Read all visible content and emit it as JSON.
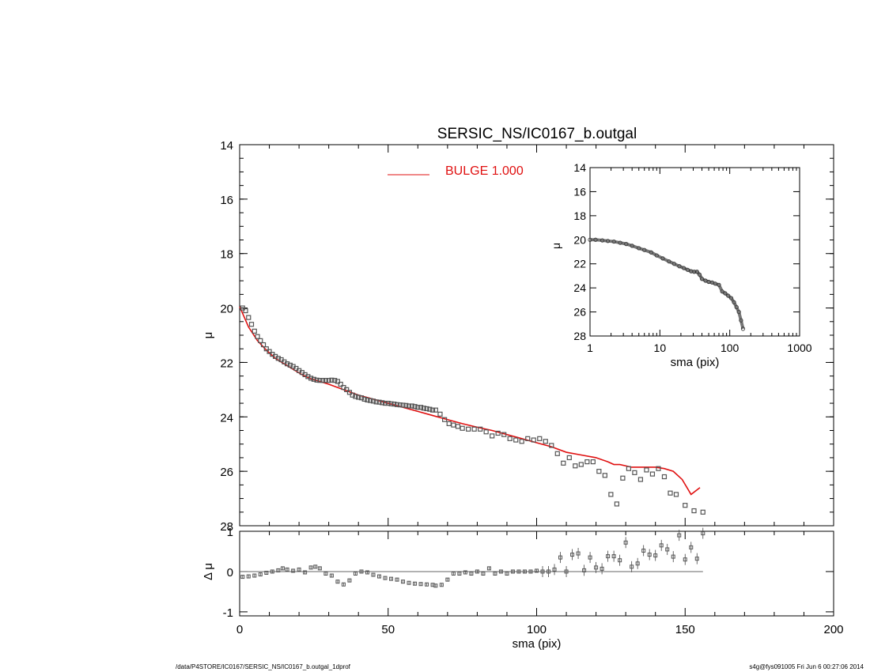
{
  "colors": {
    "model": "#e01010",
    "data": "#555555",
    "axis": "#000000",
    "zero_line": "#666666"
  },
  "footer": {
    "path": "/data/P4STORE/IC0167/SERSIC_NS/IC0167_b.outgal_1dprof",
    "stamp": "s4g@fys091005  Fri Jun  6 00:27:06 2014"
  },
  "chart_data": [
    {
      "panel": "main",
      "type": "scatter",
      "title": "SERSIC_NS/IC0167_b.outgal",
      "xlabel": "",
      "ylabel": "μ",
      "xlim": [
        0,
        200
      ],
      "ylim": [
        28,
        14
      ],
      "yticks": [
        14,
        16,
        18,
        20,
        22,
        24,
        26,
        28
      ],
      "legend": {
        "label": "BULGE  1.000",
        "placement": "top-center"
      },
      "series": [
        {
          "name": "",
          "kind": "points",
          "x": [
            1.0,
            2.0,
            3.0,
            4.0,
            5.0,
            6.0,
            7.0,
            8.0,
            9.0,
            10.0,
            11.0,
            12.0,
            13.0,
            14.0,
            15.0,
            16.0,
            17.0,
            18.0,
            19.0,
            20.0,
            21.0,
            22.0,
            23.0,
            24.0,
            25.0,
            26.0,
            27.0,
            28.0,
            29.0,
            30.0,
            31.0,
            32.0,
            33.0,
            34.0,
            35.0,
            36.0,
            37.0,
            38.0,
            39.0,
            40.0,
            41.0,
            42.0,
            43.0,
            44.0,
            45.0,
            46.0,
            47.0,
            48.0,
            49.0,
            50.0,
            51.0,
            52.0,
            53.0,
            54.0,
            55.0,
            56.0,
            57.0,
            58.0,
            59.0,
            60.0,
            61.0,
            62.0,
            63.0,
            64.0,
            65.0,
            66.0,
            67.5,
            69.0,
            70.5,
            72.0,
            73.5,
            75.0,
            77.0,
            79.0,
            81.0,
            83.0,
            85.0,
            87.0,
            89.0,
            91.0,
            93.0,
            95.0,
            97.0,
            99.0,
            101.0,
            103.0,
            105.0,
            107.0,
            109.0,
            111.0,
            113.0,
            115.0,
            117.0,
            119.0,
            121.0,
            123.0,
            125.0,
            127.0,
            129.0,
            131.0,
            133.0,
            135.0,
            137.0,
            139.0,
            141.0,
            143.0,
            145.0,
            147.0,
            150.0,
            153.0,
            156.0
          ],
          "y": [
            20.0,
            20.1,
            20.35,
            20.6,
            20.85,
            21.05,
            21.2,
            21.35,
            21.5,
            21.6,
            21.7,
            21.78,
            21.85,
            21.9,
            21.98,
            22.05,
            22.1,
            22.15,
            22.22,
            22.3,
            22.37,
            22.45,
            22.52,
            22.58,
            22.62,
            22.65,
            22.66,
            22.66,
            22.66,
            22.66,
            22.65,
            22.66,
            22.7,
            22.8,
            22.92,
            23.0,
            23.1,
            23.2,
            23.25,
            23.28,
            23.3,
            23.35,
            23.38,
            23.4,
            23.42,
            23.45,
            23.46,
            23.48,
            23.5,
            23.5,
            23.52,
            23.53,
            23.55,
            23.56,
            23.57,
            23.58,
            23.6,
            23.6,
            23.62,
            23.65,
            23.65,
            23.68,
            23.7,
            23.72,
            23.75,
            23.75,
            23.9,
            24.1,
            24.25,
            24.3,
            24.35,
            24.42,
            24.45,
            24.45,
            24.45,
            24.55,
            24.7,
            24.6,
            24.65,
            24.8,
            24.85,
            24.9,
            24.8,
            24.85,
            24.8,
            24.9,
            25.05,
            25.35,
            25.7,
            25.5,
            25.8,
            25.75,
            25.65,
            25.65,
            26.0,
            26.15,
            26.85,
            27.2,
            26.25,
            25.9,
            26.05,
            26.3,
            25.95,
            26.1,
            25.9,
            26.2,
            26.8,
            26.85,
            27.25,
            27.45,
            27.5
          ],
          "note_on": ""
        },
        {
          "name": "",
          "kind": "model-line",
          "x": [
            0.0,
            3.0,
            6.0,
            9.0,
            12.0,
            15.0,
            18.0,
            21.0,
            24.0,
            27.0,
            30.0,
            35.0,
            40.0,
            45.0,
            50.0,
            55.0,
            60.0,
            65.0,
            70.0,
            75.0,
            80.0,
            85.0,
            90.0,
            95.0,
            100.0,
            105.0,
            110.0,
            115.0,
            120.0,
            124.0,
            126.0,
            128.0,
            130.0,
            132.0,
            135.0,
            138.0,
            140.0,
            143.0,
            146.0,
            149.0,
            152.0,
            155.0
          ],
          "y": [
            19.95,
            20.7,
            21.2,
            21.55,
            21.85,
            22.05,
            22.25,
            22.45,
            22.6,
            22.7,
            22.8,
            23.0,
            23.2,
            23.35,
            23.5,
            23.65,
            23.8,
            23.95,
            24.1,
            24.25,
            24.38,
            24.5,
            24.65,
            24.8,
            24.95,
            25.1,
            25.3,
            25.4,
            25.5,
            25.65,
            25.75,
            25.75,
            25.8,
            25.85,
            25.85,
            25.85,
            25.85,
            25.9,
            26.0,
            26.3,
            26.85,
            26.6
          ]
        }
      ]
    },
    {
      "panel": "inset",
      "type": "scatter",
      "title": "",
      "xlabel": "sma (pix)",
      "ylabel": "μ",
      "xscale": "log",
      "xlim": [
        1,
        1000
      ],
      "xticks": [
        1,
        10,
        100,
        1000
      ],
      "ylim": [
        28,
        14
      ],
      "yticks": [
        14,
        16,
        18,
        20,
        22,
        24,
        26,
        28
      ],
      "series": [
        {
          "name": "",
          "x": [
            1.0,
            1.2,
            1.5,
            1.8,
            2.2,
            2.7,
            3.3,
            4.0,
            5.0,
            6.0,
            7.5,
            9.0,
            11.0,
            13.5,
            16.0,
            19.0,
            22.0,
            25.0,
            28.0,
            31.0,
            34.0,
            37.0,
            40.0,
            45.0,
            50.0,
            56.0,
            62.0,
            70.0,
            78.0,
            86.0,
            95.0,
            105.0,
            115.0,
            125.0,
            135.0,
            145.0,
            155.0
          ],
          "y": [
            20.0,
            20.0,
            20.05,
            20.1,
            20.15,
            20.25,
            20.35,
            20.5,
            20.7,
            20.85,
            21.05,
            21.3,
            21.55,
            21.8,
            22.0,
            22.2,
            22.35,
            22.5,
            22.62,
            22.66,
            22.66,
            22.9,
            23.25,
            23.4,
            23.5,
            23.55,
            23.65,
            23.75,
            24.3,
            24.45,
            24.65,
            24.85,
            25.2,
            25.6,
            26.0,
            26.7,
            27.4
          ]
        }
      ]
    },
    {
      "panel": "residual",
      "type": "scatter",
      "title": "",
      "xlabel": "sma (pix)",
      "ylabel": "Δ μ",
      "xlim": [
        0,
        200
      ],
      "xticks": [
        0,
        50,
        100,
        150,
        200
      ],
      "ylim": [
        -1.1,
        1.0
      ],
      "yticks": [
        -1,
        0,
        1
      ],
      "series": [
        {
          "name": "",
          "x": [
            1.0,
            3.0,
            5.0,
            7.0,
            9.0,
            11.0,
            13.0,
            14.5,
            16.0,
            18.0,
            20.0,
            22.0,
            24.0,
            25.5,
            27.0,
            29.0,
            31.0,
            33.0,
            35.0,
            37.0,
            39.0,
            41.0,
            43.0,
            45.0,
            47.0,
            49.0,
            51.0,
            53.0,
            55.0,
            57.0,
            59.0,
            61.0,
            63.0,
            65.0,
            66.0,
            68.0,
            70.0,
            72.0,
            74.0,
            76.0,
            78.0,
            80.0,
            82.0,
            84.0,
            86.0,
            88.0,
            90.0,
            92.0,
            94.0,
            96.0,
            98.0,
            100.0,
            102.0,
            104.0,
            106.0,
            108.0,
            110.0,
            112.0,
            114.0,
            116.0,
            118.0,
            120.0,
            122.0,
            124.0,
            126.0,
            128.0,
            130.0,
            132.0,
            134.0,
            136.0,
            138.0,
            140.0,
            142.0,
            144.0,
            146.0,
            148.0,
            150.0,
            152.0,
            154.0,
            156.0
          ],
          "y": [
            -0.13,
            -0.12,
            -0.1,
            -0.07,
            -0.03,
            0.0,
            0.03,
            0.08,
            0.05,
            0.02,
            0.05,
            -0.02,
            0.1,
            0.12,
            0.08,
            -0.05,
            -0.1,
            -0.25,
            -0.32,
            -0.22,
            -0.05,
            0.0,
            -0.02,
            -0.08,
            -0.12,
            -0.16,
            -0.18,
            -0.2,
            -0.25,
            -0.28,
            -0.3,
            -0.31,
            -0.32,
            -0.33,
            -0.35,
            -0.33,
            -0.2,
            -0.05,
            -0.05,
            -0.02,
            -0.05,
            0.0,
            -0.05,
            0.08,
            -0.05,
            0.0,
            -0.05,
            0.0,
            0.0,
            0.0,
            0.0,
            0.02,
            0.0,
            0.0,
            0.05,
            0.35,
            0.0,
            0.42,
            0.45,
            0.03,
            0.35,
            0.1,
            0.07,
            0.38,
            0.38,
            0.28,
            0.72,
            0.12,
            0.2,
            0.52,
            0.42,
            0.4,
            0.65,
            0.55,
            0.37,
            0.9,
            0.3,
            0.6,
            0.32,
            0.95
          ]
        }
      ]
    }
  ]
}
